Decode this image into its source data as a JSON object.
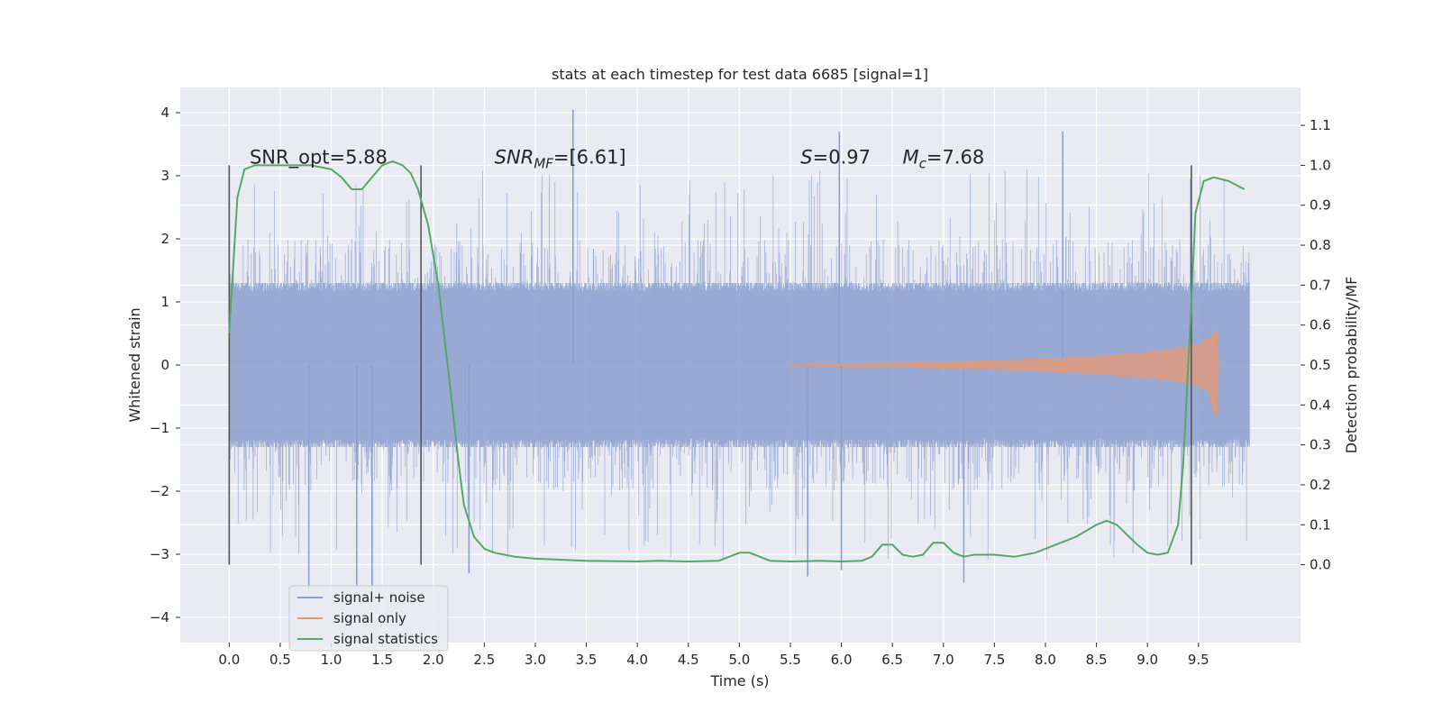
{
  "chart_data": {
    "type": "line",
    "title": "stats at each timestep for test data 6685 [signal=1]",
    "xlabel": "Time (s)",
    "ylabel": "Whitened strain",
    "y2label": "Detection probability/MF",
    "xlim": [
      -0.48,
      10.5
    ],
    "ylim": [
      -4.4,
      4.4
    ],
    "y2lim": [
      -0.195,
      1.195
    ],
    "xticks": [
      0.0,
      0.5,
      1.0,
      1.5,
      2.0,
      2.5,
      3.0,
      3.5,
      4.0,
      4.5,
      5.0,
      5.5,
      6.0,
      6.5,
      7.0,
      7.5,
      8.0,
      8.5,
      9.0,
      9.5
    ],
    "xtick_labels": [
      "0.0",
      "0.5",
      "1.0",
      "1.5",
      "2.0",
      "2.5",
      "3.0",
      "3.5",
      "4.0",
      "4.5",
      "5.0",
      "5.5",
      "6.0",
      "6.5",
      "7.0",
      "7.5",
      "8.0",
      "8.5",
      "9.0",
      "9.5"
    ],
    "yticks": [
      -4,
      -3,
      -2,
      -1,
      0,
      1,
      2,
      3,
      4
    ],
    "ytick_labels": [
      "−4",
      "−3",
      "−2",
      "−1",
      "0",
      "1",
      "2",
      "3",
      "4"
    ],
    "y2ticks": [
      0.0,
      0.1,
      0.2,
      0.3,
      0.4,
      0.5,
      0.6,
      0.7,
      0.8,
      0.9,
      1.0,
      1.1
    ],
    "y2tick_labels": [
      "0.0",
      "0.1",
      "0.2",
      "0.3",
      "0.4",
      "0.5",
      "0.6",
      "0.7",
      "0.8",
      "0.9",
      "1.0",
      "1.1"
    ],
    "grid": true,
    "legend_position": "lower-left",
    "annotations": [
      {
        "text": "SNR_opt=5.88",
        "x": 0.2,
        "y2": 1.0
      },
      {
        "text": "SNR",
        "sub": "MF",
        "rest": "=[6.61]",
        "x": 2.6,
        "y2": 1.0
      },
      {
        "text": "S",
        "rest": "=0.97",
        "x": 5.6,
        "y2": 1.0
      },
      {
        "text": "M",
        "sub": "c",
        "rest": "=7.68",
        "x": 6.6,
        "y2": 1.0
      }
    ],
    "vertical_lines_x": [
      0.0,
      1.88,
      9.43
    ],
    "series": [
      {
        "name": "signal+ noise",
        "axis": "left",
        "color": "#8a9fcf",
        "x_range": [
          0.0,
          10.0
        ],
        "core_amplitude": 1.3,
        "outer_amplitude": 2.0,
        "peaks": [
          {
            "x": 0.78,
            "y": -3.6
          },
          {
            "x": 1.25,
            "y": -3.5
          },
          {
            "x": 1.4,
            "y": -3.6
          },
          {
            "x": 2.35,
            "y": -3.3
          },
          {
            "x": 3.37,
            "y": 4.05
          },
          {
            "x": 5.67,
            "y": -3.35
          },
          {
            "x": 5.98,
            "y": 3.7
          },
          {
            "x": 6.0,
            "y": -3.25
          },
          {
            "x": 7.2,
            "y": -3.45
          },
          {
            "x": 8.17,
            "y": 3.7
          }
        ]
      },
      {
        "name": "signal only",
        "axis": "left",
        "color": "#dd9a7e",
        "x": [
          5.5,
          6.0,
          6.5,
          7.0,
          7.5,
          8.0,
          8.5,
          9.0,
          9.3,
          9.5,
          9.6,
          9.65,
          9.68,
          9.7
        ],
        "envelope": [
          0.01,
          0.02,
          0.03,
          0.05,
          0.07,
          0.1,
          0.14,
          0.2,
          0.26,
          0.33,
          0.42,
          0.5,
          0.55,
          0.0
        ]
      },
      {
        "name": "signal statistics",
        "axis": "right",
        "color": "#55a868",
        "x": [
          0.0,
          0.08,
          0.15,
          0.25,
          0.5,
          0.8,
          1.0,
          1.1,
          1.2,
          1.3,
          1.4,
          1.5,
          1.6,
          1.7,
          1.78,
          1.85,
          1.95,
          2.05,
          2.15,
          2.25,
          2.3,
          2.4,
          2.5,
          2.6,
          2.8,
          3.0,
          3.5,
          4.0,
          4.2,
          4.5,
          4.8,
          5.0,
          5.1,
          5.3,
          5.5,
          5.8,
          6.0,
          6.2,
          6.3,
          6.4,
          6.5,
          6.6,
          6.7,
          6.8,
          6.9,
          7.0,
          7.1,
          7.2,
          7.3,
          7.5,
          7.7,
          7.9,
          8.1,
          8.3,
          8.5,
          8.6,
          8.7,
          8.9,
          9.0,
          9.1,
          9.2,
          9.3,
          9.35,
          9.42,
          9.47,
          9.55,
          9.65,
          9.8,
          9.95
        ],
        "y": [
          0.58,
          0.92,
          0.99,
          1.0,
          1.0,
          1.0,
          0.99,
          0.97,
          0.94,
          0.94,
          0.97,
          1.0,
          1.01,
          1.0,
          0.98,
          0.94,
          0.85,
          0.7,
          0.48,
          0.25,
          0.15,
          0.07,
          0.04,
          0.03,
          0.02,
          0.015,
          0.01,
          0.008,
          0.01,
          0.008,
          0.01,
          0.03,
          0.03,
          0.01,
          0.008,
          0.01,
          0.008,
          0.01,
          0.02,
          0.05,
          0.05,
          0.025,
          0.02,
          0.025,
          0.055,
          0.055,
          0.03,
          0.02,
          0.025,
          0.025,
          0.02,
          0.03,
          0.05,
          0.07,
          0.1,
          0.11,
          0.1,
          0.05,
          0.03,
          0.025,
          0.03,
          0.1,
          0.25,
          0.6,
          0.88,
          0.96,
          0.97,
          0.96,
          0.94
        ]
      }
    ]
  }
}
